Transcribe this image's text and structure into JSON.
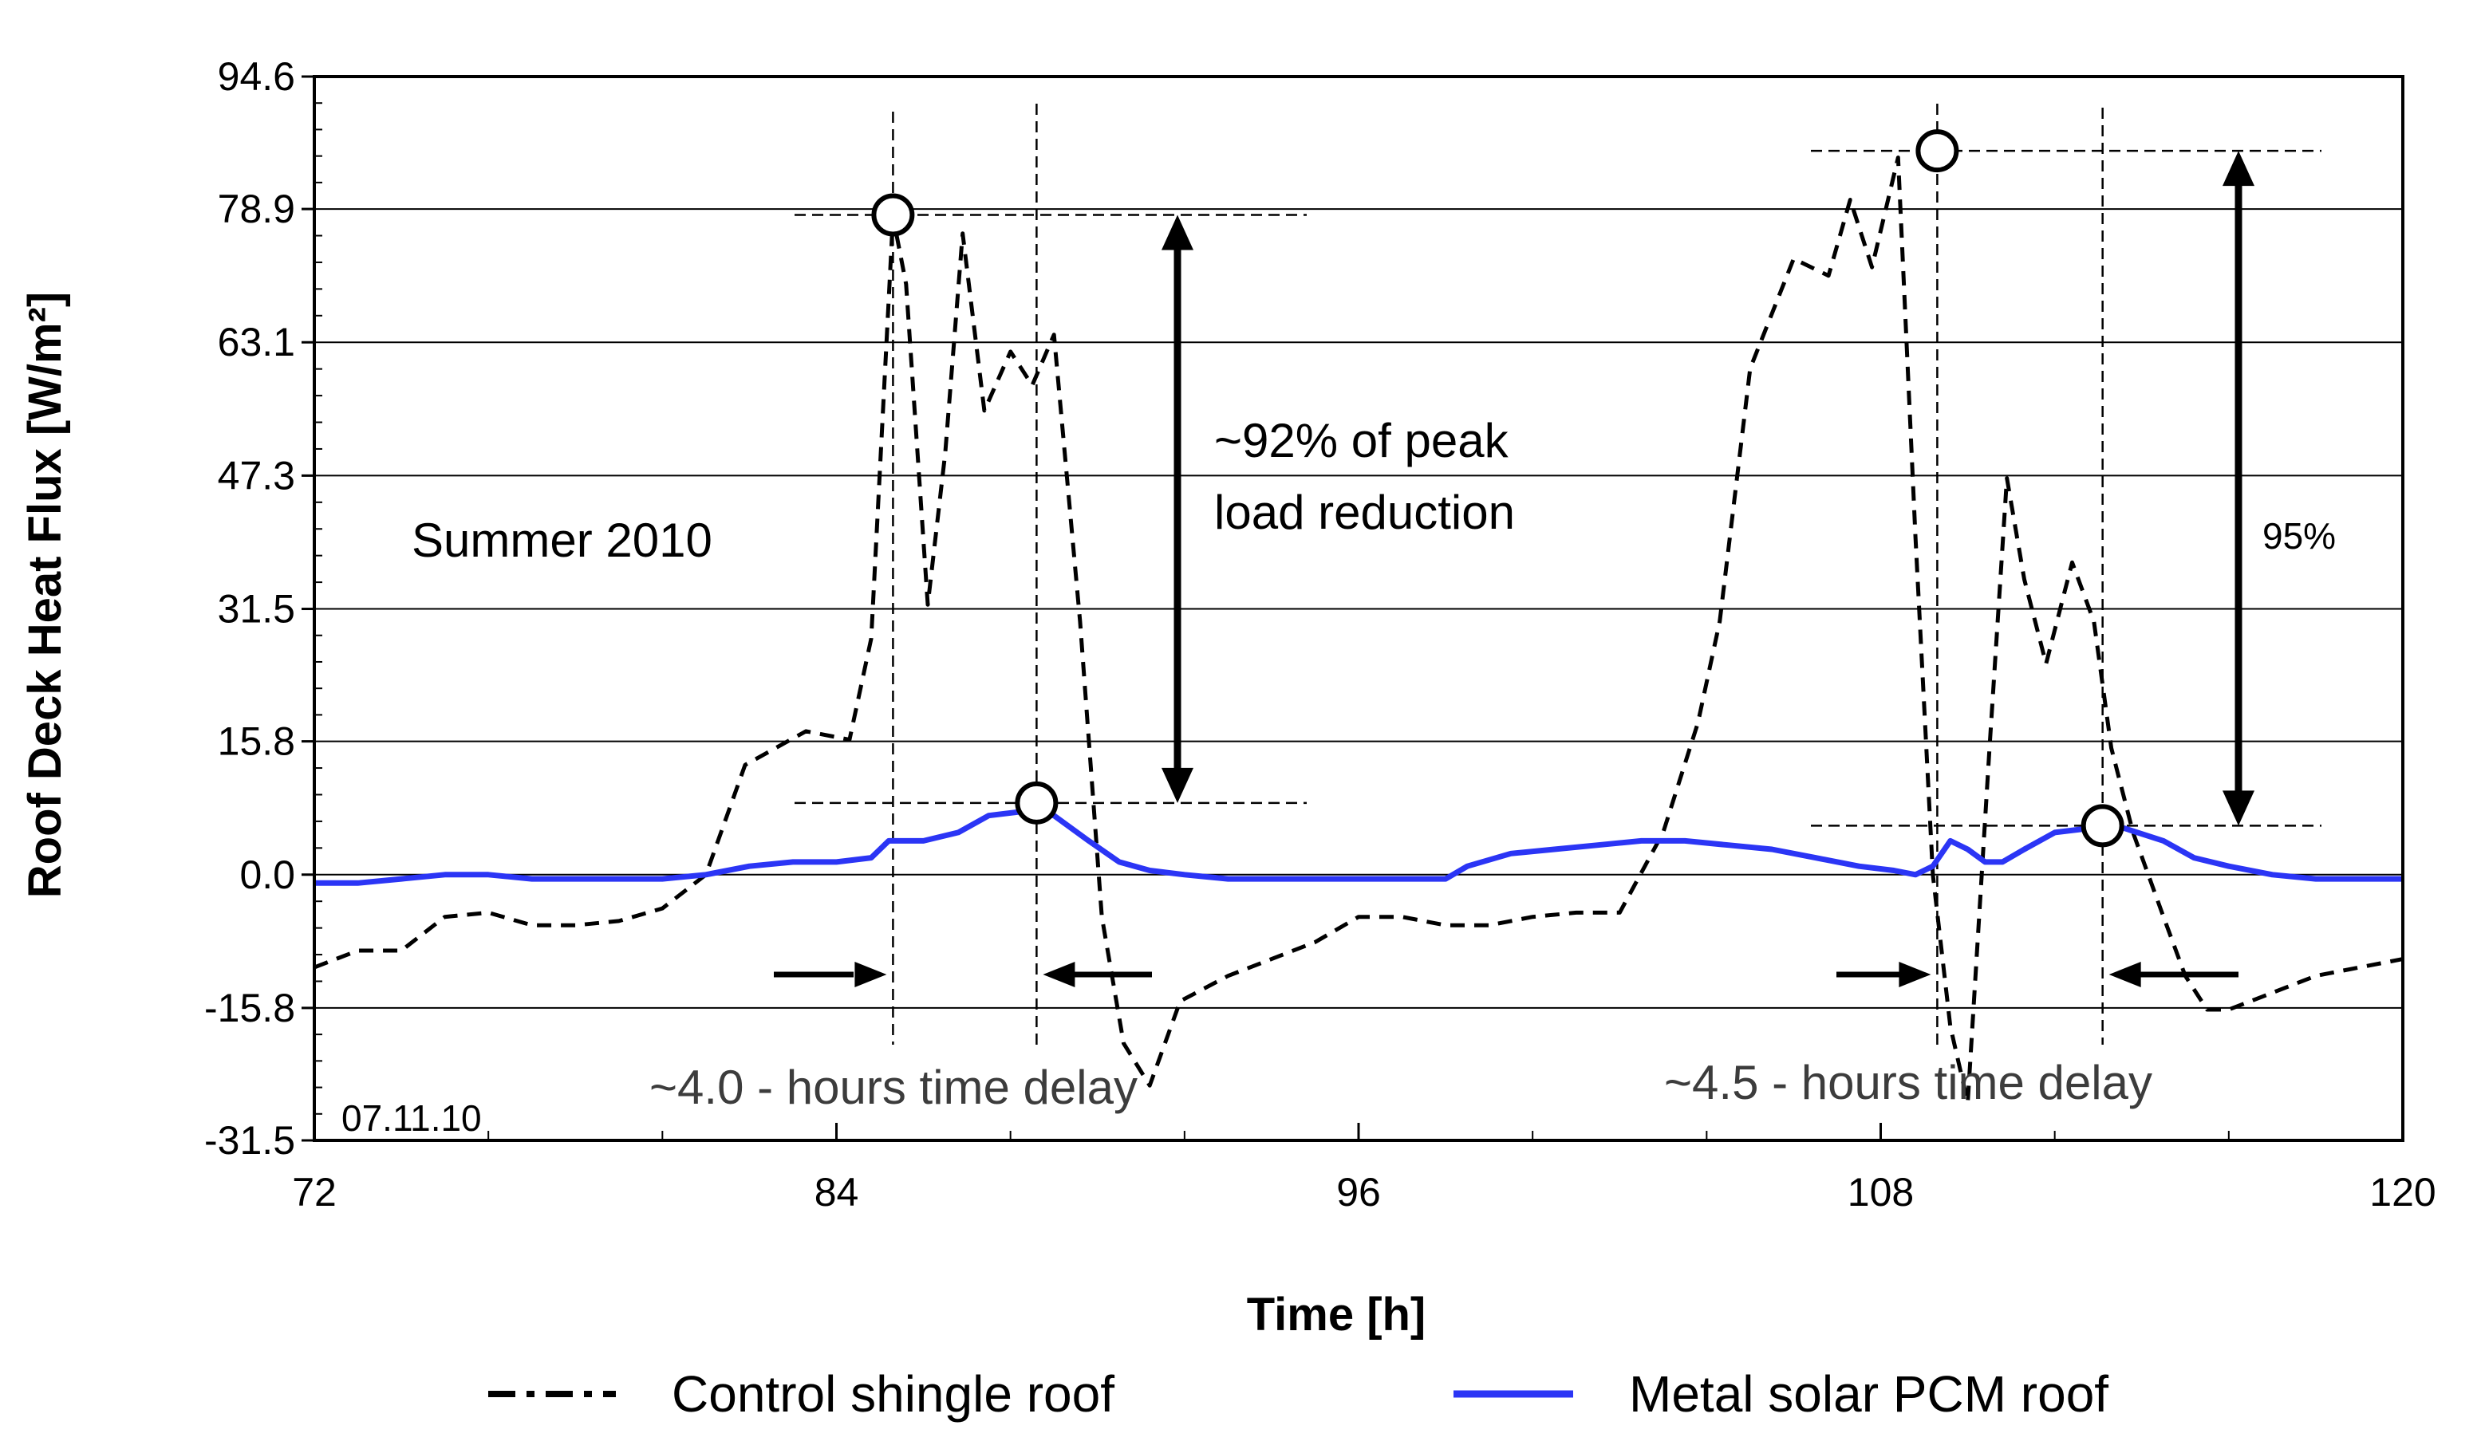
{
  "chart_data": {
    "type": "line",
    "title": "",
    "xlabel": "Time [h]",
    "ylabel": "Roof Deck Heat Flux [W/m²]",
    "xlim": [
      72,
      120
    ],
    "ylim": [
      -31.5,
      94.6
    ],
    "xticks": [
      72,
      84,
      96,
      108,
      120
    ],
    "xtick_labels": [
      "72",
      "84",
      "96",
      "108",
      "120"
    ],
    "yticks": [
      -31.5,
      -15.8,
      0.0,
      15.8,
      31.5,
      47.3,
      63.1,
      78.9,
      94.6
    ],
    "ytick_labels": [
      "-31.5",
      "-15.8",
      "0.0",
      "15.8",
      "31.5",
      "47.3",
      "63.1",
      "78.9",
      "94.6"
    ],
    "grid": "horizontal",
    "legend_position": "bottom",
    "series": [
      {
        "name": "Control shingle roof",
        "color": "#000000",
        "style": "dashed",
        "x": [
          72,
          73,
          74,
          75,
          76,
          77,
          78,
          79,
          80,
          81,
          81.9,
          82.6,
          83.3,
          84.3,
          84.8,
          85.3,
          85.6,
          86.1,
          86.5,
          86.9,
          87.4,
          88.0,
          88.5,
          89.0,
          89.6,
          90.1,
          90.6,
          91.2,
          91.9,
          93,
          94,
          95,
          96,
          97,
          98,
          99,
          100,
          101,
          102,
          103,
          103.8,
          104.3,
          105,
          106,
          106.8,
          107.3,
          107.8,
          108.4,
          108.8,
          109.2,
          109.6,
          110.0,
          110.5,
          110.9,
          111.3,
          111.8,
          112.4,
          112.9,
          113.3,
          113.8,
          114.5,
          115,
          115.5,
          116,
          117,
          118,
          119,
          120
        ],
        "y": [
          -11,
          -9,
          -9,
          -5,
          -4.5,
          -6,
          -6,
          -5.5,
          -4,
          0,
          13,
          15,
          17,
          16,
          28,
          78,
          70,
          32,
          50,
          76,
          55,
          62,
          58,
          64,
          30,
          -5,
          -20,
          -25,
          -15,
          -12,
          -10,
          -8,
          -5,
          -5,
          -6,
          -6,
          -5,
          -4.5,
          -4.5,
          5,
          18,
          30,
          60,
          73,
          71,
          80,
          72,
          85,
          40,
          0,
          -18,
          -27,
          15,
          47,
          35,
          25,
          37,
          30,
          15,
          5,
          -5,
          -12,
          -16,
          -16,
          -14,
          -12,
          -11,
          -10
        ]
      },
      {
        "name": "Metal solar PCM roof",
        "color": "#2b35f5",
        "style": "solid",
        "x": [
          72,
          73,
          74,
          75,
          76,
          77,
          78,
          79,
          80,
          81,
          82,
          83,
          84,
          84.8,
          85.2,
          86,
          86.8,
          87.5,
          88.3,
          89.0,
          89.8,
          90.5,
          91.2,
          92,
          93,
          94,
          95,
          96,
          97,
          98,
          98.5,
          99.5,
          100.5,
          101.5,
          102.5,
          103.5,
          104.5,
          105.5,
          106.5,
          107.5,
          108.3,
          108.8,
          109.2,
          109.6,
          110.0,
          110.4,
          110.8,
          111.3,
          112,
          112.8,
          113.6,
          114.5,
          115.2,
          116,
          117,
          118,
          119,
          120
        ],
        "y": [
          -1,
          -1,
          -0.5,
          0,
          0,
          -0.5,
          -0.5,
          -0.5,
          -0.5,
          0,
          1,
          1.5,
          1.5,
          2,
          4,
          4,
          5,
          7,
          7.5,
          7,
          4,
          1.5,
          0.5,
          0,
          -0.5,
          -0.5,
          -0.5,
          -0.5,
          -0.5,
          -0.5,
          1,
          2.5,
          3,
          3.5,
          4,
          4,
          3.5,
          3,
          2,
          1,
          0.5,
          0,
          1,
          4,
          3,
          1.5,
          1.5,
          3,
          5,
          5.5,
          5.5,
          4,
          2,
          1,
          0,
          -0.5,
          -0.5,
          -0.5
        ]
      }
    ],
    "markers": [
      {
        "x": 85.3,
        "y": 78.2
      },
      {
        "x": 88.6,
        "y": 8.5
      },
      {
        "x": 109.3,
        "y": 85.8
      },
      {
        "x": 113.1,
        "y": 5.8
      }
    ],
    "annotations": {
      "reduction1": [
        "~92% of peak",
        "load reduction"
      ],
      "reduction2": "95%",
      "season": "Summer 2010",
      "delay1": "~4.0 - hours time delay",
      "delay2": "~4.5 - hours time delay",
      "date": "07.11.10"
    }
  }
}
